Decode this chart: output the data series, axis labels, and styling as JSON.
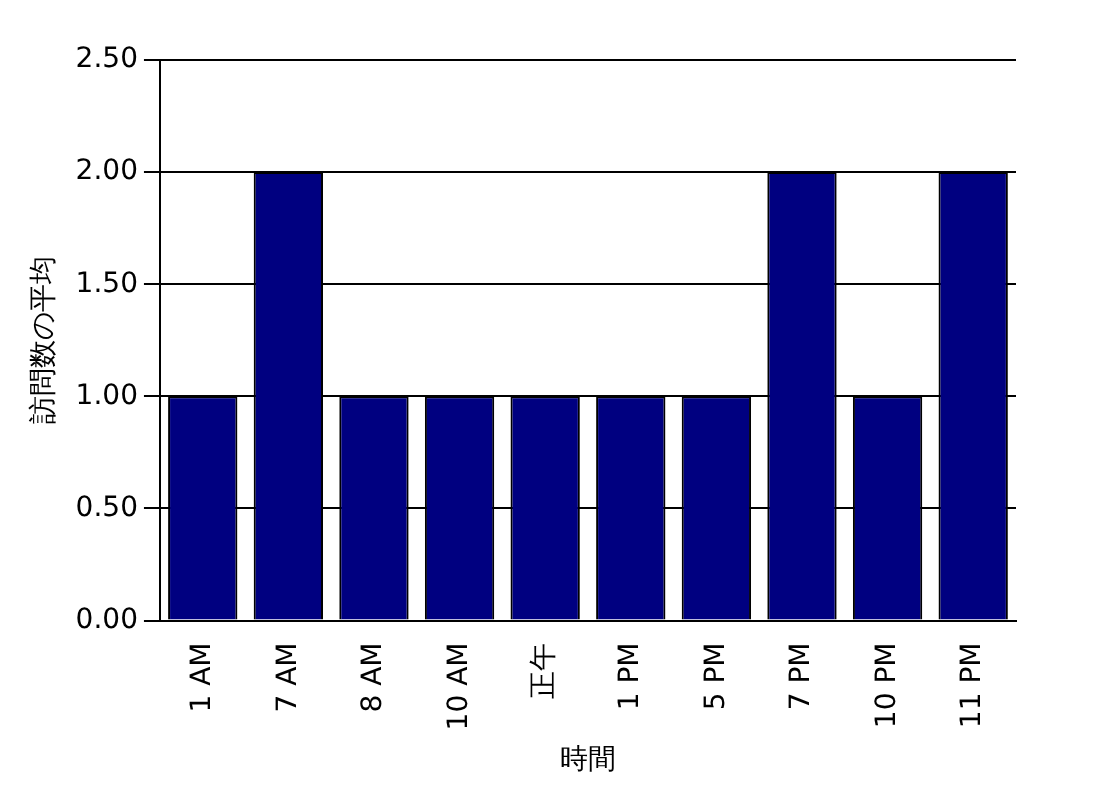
{
  "chart_data": {
    "type": "bar",
    "xlabel": "時間",
    "ylabel": "訪問数の平均",
    "categories": [
      "1 AM",
      "7 AM",
      "8 AM",
      "10 AM",
      "正午",
      "1 PM",
      "5 PM",
      "7 PM",
      "10 PM",
      "11 PM"
    ],
    "values": [
      1,
      2,
      1,
      1,
      1,
      1,
      1,
      2,
      1,
      2
    ],
    "color": "#000080",
    "ylim": [
      0,
      2.5
    ],
    "yticks": [
      {
        "value": 0,
        "label": "0.00"
      },
      {
        "value": 0.5,
        "label": "0.50"
      },
      {
        "value": 1,
        "label": "1.00"
      },
      {
        "value": 1.5,
        "label": "1.50"
      },
      {
        "value": 2,
        "label": "2.00"
      },
      {
        "value": 2.5,
        "label": "2.50"
      }
    ],
    "grid": "y",
    "legend": false
  }
}
